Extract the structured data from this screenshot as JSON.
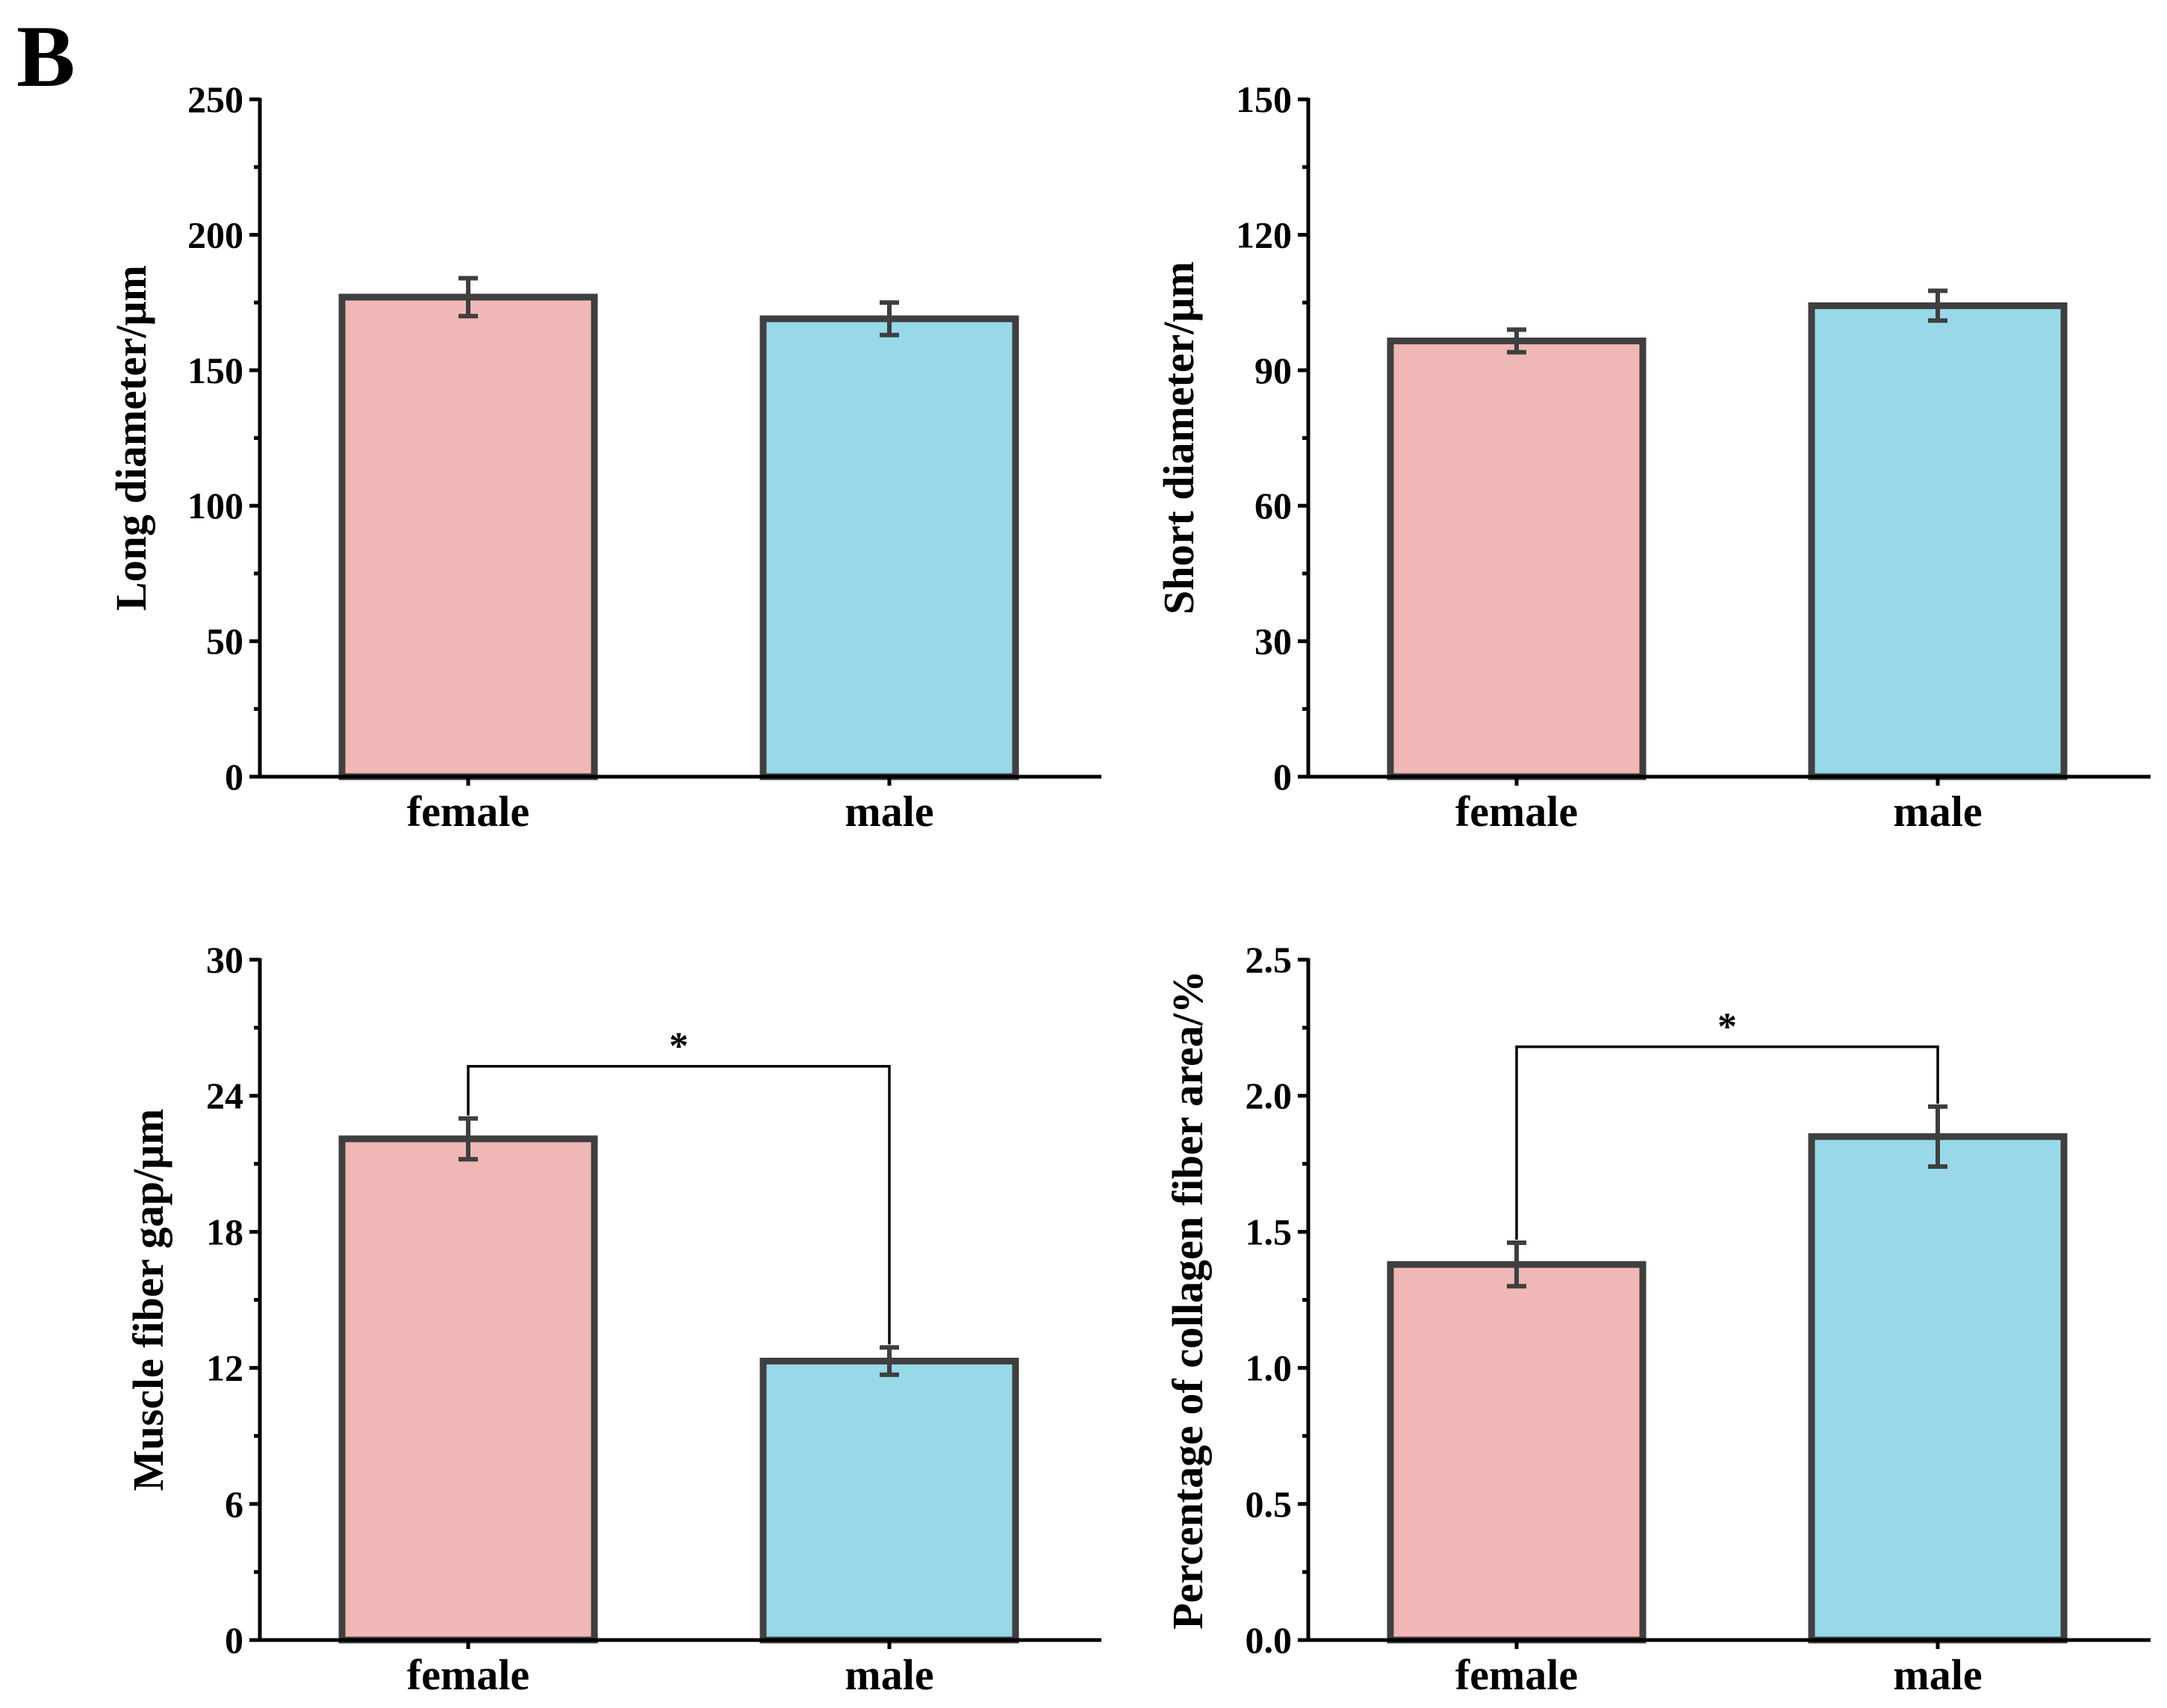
{
  "figure": {
    "panel_label": "B"
  },
  "colors": {
    "female": "#EFB7B6",
    "male": "#98D8E8",
    "edge": "#3F3F3F"
  },
  "chart_data": [
    {
      "type": "bar",
      "categories": [
        "female",
        "male"
      ],
      "values": [
        177,
        169
      ],
      "errors": [
        7,
        6
      ],
      "ylabel": "Long diameter/μm",
      "ylim": [
        0,
        250
      ],
      "yticks": [
        0,
        50,
        100,
        150,
        200,
        250
      ],
      "yticks_label": [
        "0",
        "50",
        "100",
        "150",
        "200",
        "250"
      ],
      "significance": null
    },
    {
      "type": "bar",
      "categories": [
        "female",
        "male"
      ],
      "values": [
        96.5,
        104.3
      ],
      "errors": [
        2.5,
        3.3
      ],
      "ylabel": "Short diameter/μm",
      "ylim": [
        0,
        150
      ],
      "yticks": [
        0,
        30,
        60,
        90,
        120,
        150
      ],
      "yticks_label": [
        "0",
        "30",
        "60",
        "90",
        "120",
        "150"
      ],
      "significance": null
    },
    {
      "type": "bar",
      "categories": [
        "female",
        "male"
      ],
      "values": [
        22.1,
        12.3
      ],
      "errors": [
        0.9,
        0.6
      ],
      "ylabel": "Muscle fiber gap/μm",
      "ylim": [
        0,
        30
      ],
      "yticks": [
        0,
        6,
        12,
        18,
        24,
        30
      ],
      "yticks_label": [
        "0",
        "6",
        "12",
        "18",
        "24",
        "30"
      ],
      "significance": {
        "label": "*",
        "level": 25.3
      }
    },
    {
      "type": "bar",
      "categories": [
        "female",
        "male"
      ],
      "values": [
        1.38,
        1.85
      ],
      "errors": [
        0.08,
        0.11
      ],
      "ylabel": "Percentage of collagen fiber area/%",
      "ylim": [
        0,
        2.5
      ],
      "yticks": [
        0,
        0.5,
        1.0,
        1.5,
        2.0,
        2.5
      ],
      "yticks_label": [
        "0.0",
        "0.5",
        "1.0",
        "1.5",
        "2.0",
        "2.5"
      ],
      "significance": {
        "label": "*",
        "level": 2.18
      }
    }
  ]
}
